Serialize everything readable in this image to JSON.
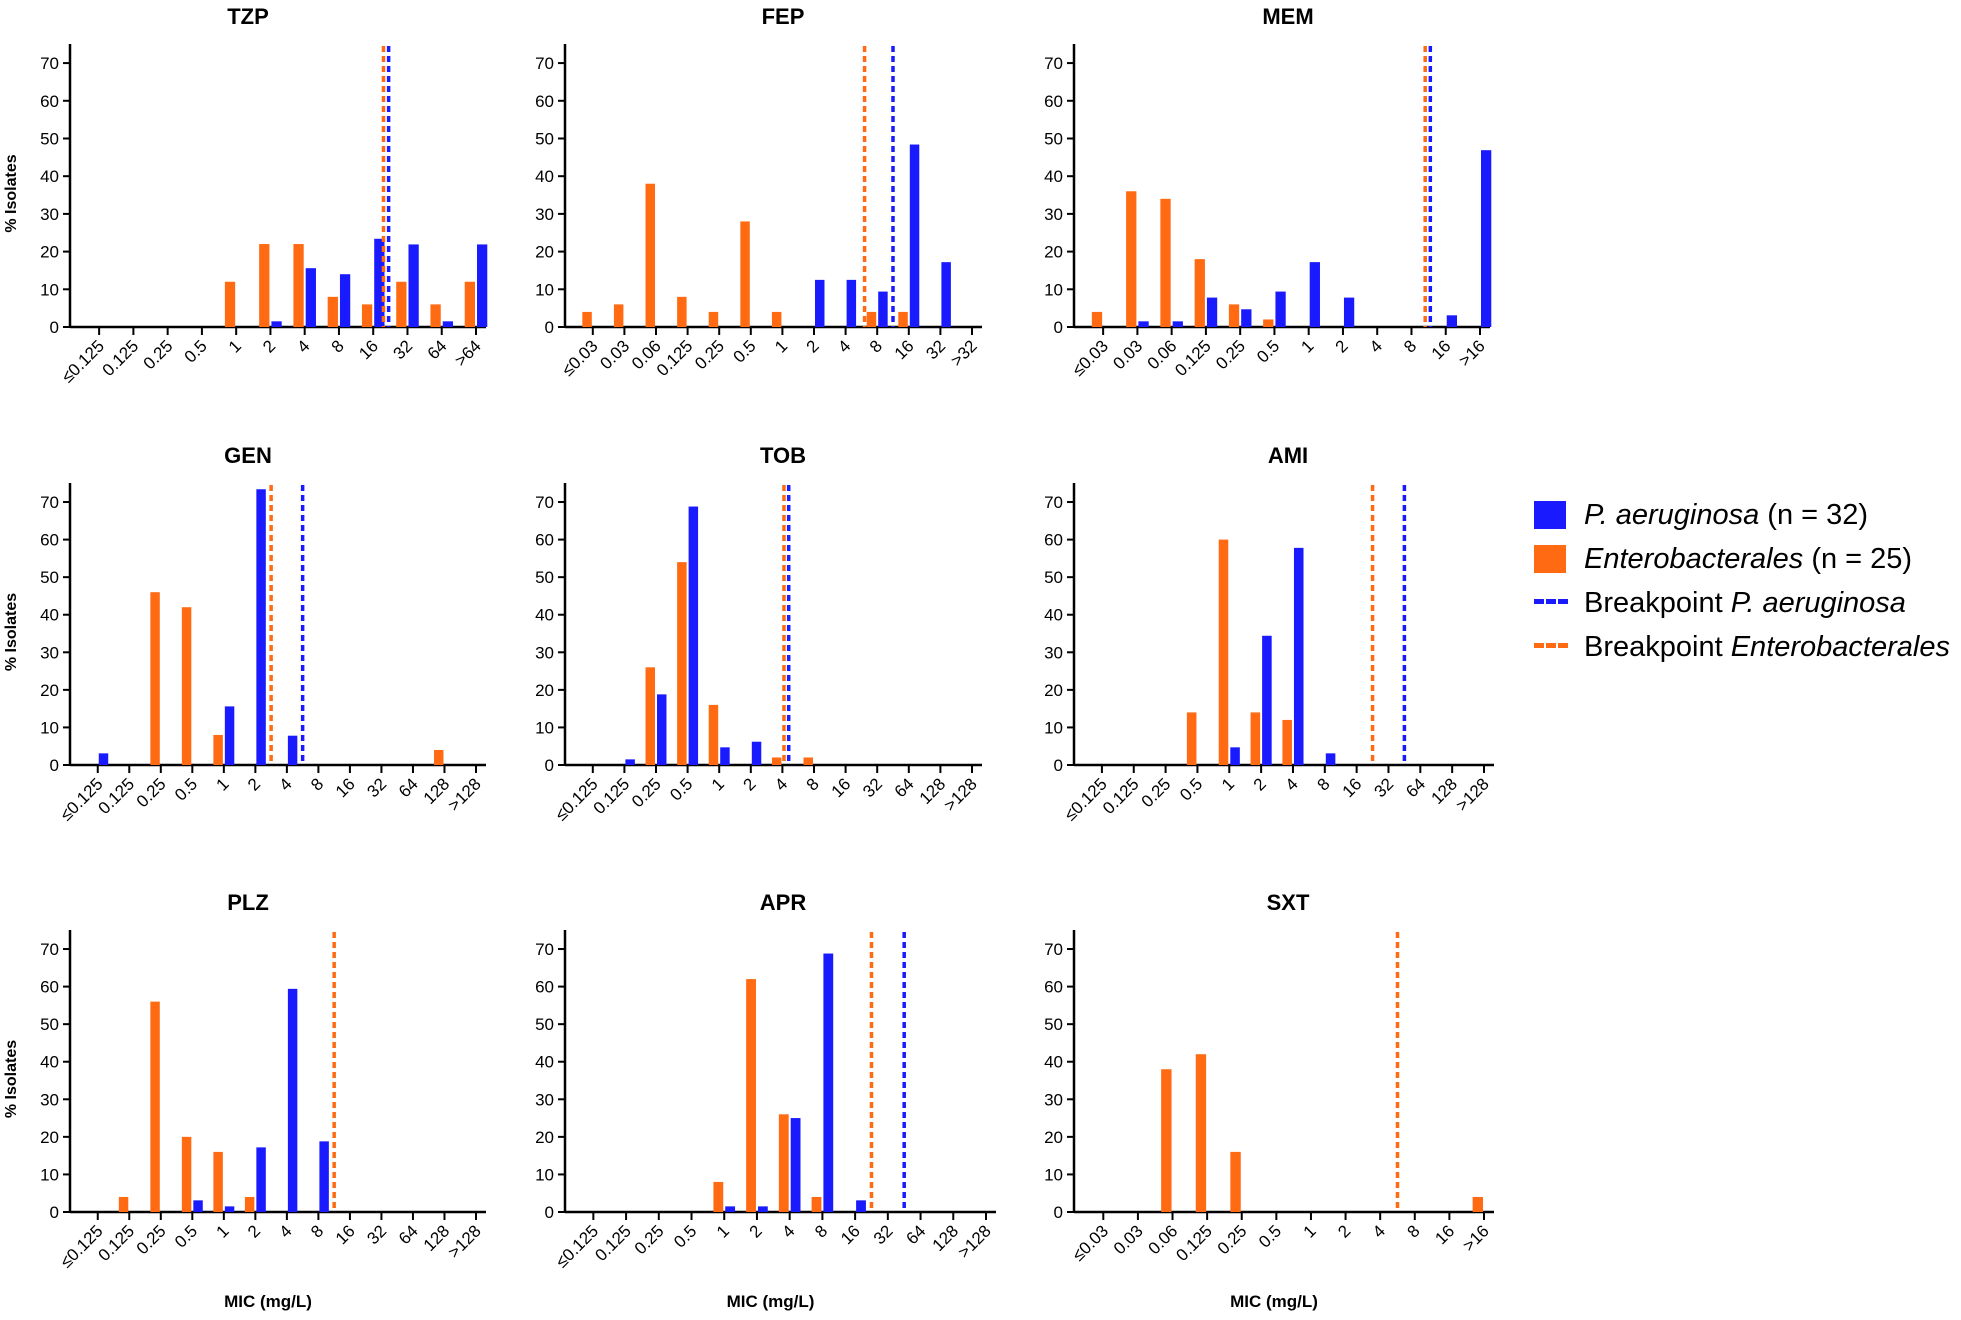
{
  "colors": {
    "pa": "#1a1aff",
    "en": "#ff6a13",
    "axis": "#000000"
  },
  "legend": {
    "pa_bar": {
      "species": "P. aeruginosa",
      "suffix": "(n = 32)"
    },
    "en_bar": {
      "species": "Enterobacterales",
      "suffix": "(n = 25)"
    },
    "pa_bp": {
      "prefix": "Breakpoint",
      "species": "P. aeruginosa"
    },
    "en_bp": {
      "prefix": "Breakpoint",
      "species": "Enterobacterales"
    }
  },
  "chart_data": [
    {
      "type": "bar",
      "title": "TZP",
      "ylabel": "% Isolates",
      "xlabel": "",
      "ylim": [
        0,
        74
      ],
      "yticks": [
        0,
        10,
        20,
        30,
        40,
        50,
        60,
        70
      ],
      "categories": [
        "≤0.125",
        "0.125",
        "0.25",
        "0.5",
        "1",
        "2",
        "4",
        "8",
        "16",
        "32",
        "64",
        ">64"
      ],
      "series": [
        {
          "name": "P. aeruginosa",
          "values": [
            0,
            0,
            0,
            0,
            0,
            1.5,
            15.6,
            14,
            23.4,
            21.9,
            1.5,
            21.9
          ]
        },
        {
          "name": "Enterobacterales",
          "values": [
            0,
            0,
            0,
            0,
            12,
            22,
            22,
            8,
            6,
            12,
            6,
            12
          ]
        }
      ],
      "breakpoints": {
        "P. aeruginosa": 8.45,
        "Enterobacterales": 8.3
      }
    },
    {
      "type": "bar",
      "title": "FEP",
      "ylabel": "",
      "xlabel": "",
      "ylim": [
        0,
        74
      ],
      "yticks": [
        0,
        10,
        20,
        30,
        40,
        50,
        60,
        70
      ],
      "categories": [
        "≤0.03",
        "0.03",
        "0.06",
        "0.125",
        "0.25",
        "0.5",
        "1",
        "2",
        "4",
        "8",
        "16",
        "32",
        ">32"
      ],
      "series": [
        {
          "name": "P. aeruginosa",
          "values": [
            0,
            0,
            0,
            0,
            0,
            0,
            0,
            12.5,
            12.5,
            9.4,
            48.4,
            17.2,
            0
          ]
        },
        {
          "name": "Enterobacterales",
          "values": [
            4,
            6,
            38,
            8,
            4,
            28,
            4,
            0,
            0,
            4,
            4,
            0,
            0
          ]
        }
      ],
      "breakpoints": {
        "P. aeruginosa": 9.5,
        "Enterobacterales": 8.6
      }
    },
    {
      "type": "bar",
      "title": "MEM",
      "ylabel": "",
      "xlabel": "",
      "ylim": [
        0,
        74
      ],
      "yticks": [
        0,
        10,
        20,
        30,
        40,
        50,
        60,
        70
      ],
      "categories": [
        "≤0.03",
        "0.03",
        "0.06",
        "0.125",
        "0.25",
        "0.5",
        "1",
        "2",
        "4",
        "8",
        "16",
        ">16"
      ],
      "series": [
        {
          "name": "P. aeruginosa",
          "values": [
            0,
            1.5,
            1.5,
            7.8,
            4.7,
            9.4,
            17.2,
            7.8,
            0,
            0,
            3.1,
            46.9
          ]
        },
        {
          "name": "Enterobacterales",
          "values": [
            4,
            36,
            34,
            18,
            6,
            2,
            0,
            0,
            0,
            0,
            0,
            0
          ]
        }
      ],
      "breakpoints": {
        "P. aeruginosa": 9.55,
        "Enterobacterales": 9.4
      }
    },
    {
      "type": "bar",
      "title": "GEN",
      "ylabel": "% Isolates",
      "xlabel": "",
      "ylim": [
        0,
        74
      ],
      "yticks": [
        0,
        10,
        20,
        30,
        40,
        50,
        60,
        70
      ],
      "categories": [
        "≤0.125",
        "0.125",
        "0.25",
        "0.5",
        "1",
        "2",
        "4",
        "8",
        "16",
        "32",
        "64",
        "128",
        ">128"
      ],
      "series": [
        {
          "name": "P. aeruginosa",
          "values": [
            3.1,
            0,
            0,
            0,
            15.6,
            73.4,
            7.8,
            0,
            0,
            0,
            0,
            0,
            0
          ]
        },
        {
          "name": "Enterobacterales",
          "values": [
            0,
            0,
            46,
            42,
            8,
            0,
            0,
            0,
            0,
            0,
            0,
            4,
            0
          ]
        }
      ],
      "breakpoints": {
        "P. aeruginosa": 6.5,
        "Enterobacterales": 5.5
      }
    },
    {
      "type": "bar",
      "title": "TOB",
      "ylabel": "",
      "xlabel": "",
      "ylim": [
        0,
        74
      ],
      "yticks": [
        0,
        10,
        20,
        30,
        40,
        50,
        60,
        70
      ],
      "categories": [
        "≤0.125",
        "0.125",
        "0.25",
        "0.5",
        "1",
        "2",
        "4",
        "8",
        "16",
        "32",
        "64",
        "128",
        ">128"
      ],
      "series": [
        {
          "name": "P. aeruginosa",
          "values": [
            0,
            1.5,
            18.8,
            68.8,
            4.7,
            6.2,
            0,
            0,
            0,
            0,
            0,
            0,
            0
          ]
        },
        {
          "name": "Enterobacterales",
          "values": [
            0,
            0,
            26,
            54,
            16,
            0,
            2,
            2,
            0,
            0,
            0,
            0,
            0
          ]
        }
      ],
      "breakpoints": {
        "P. aeruginosa": 6.2,
        "Enterobacterales": 6.05
      }
    },
    {
      "type": "bar",
      "title": "AMI",
      "ylabel": "",
      "xlabel": "",
      "ylim": [
        0,
        74
      ],
      "yticks": [
        0,
        10,
        20,
        30,
        40,
        50,
        60,
        70
      ],
      "categories": [
        "≤0.125",
        "0.125",
        "0.25",
        "0.5",
        "1",
        "2",
        "4",
        "8",
        "16",
        "32",
        "64",
        "128",
        ">128"
      ],
      "series": [
        {
          "name": "P. aeruginosa",
          "values": [
            0,
            0,
            0,
            0,
            4.7,
            34.4,
            57.8,
            3.1,
            0,
            0,
            0,
            0,
            0
          ]
        },
        {
          "name": "Enterobacterales",
          "values": [
            0,
            0,
            0,
            14,
            60,
            14,
            12,
            0,
            0,
            0,
            0,
            0,
            0
          ]
        }
      ],
      "breakpoints": {
        "P. aeruginosa": 9.5,
        "Enterobacterales": 8.5
      }
    },
    {
      "type": "bar",
      "title": "PLZ",
      "ylabel": "% Isolates",
      "xlabel": "MIC (mg/L)",
      "ylim": [
        0,
        74
      ],
      "yticks": [
        0,
        10,
        20,
        30,
        40,
        50,
        60,
        70
      ],
      "categories": [
        "≤0.125",
        "0.125",
        "0.25",
        "0.5",
        "1",
        "2",
        "4",
        "8",
        "16",
        "32",
        "64",
        "128",
        ">128"
      ],
      "series": [
        {
          "name": "P. aeruginosa",
          "values": [
            0,
            0,
            0,
            3.1,
            1.5,
            17.2,
            59.4,
            18.8,
            0,
            0,
            0,
            0,
            0
          ]
        },
        {
          "name": "Enterobacterales",
          "values": [
            0,
            4,
            56,
            20,
            16,
            4,
            0,
            0,
            0,
            0,
            0,
            0,
            0
          ]
        }
      ],
      "breakpoints": {
        "P. aeruginosa": null,
        "Enterobacterales": 7.5
      }
    },
    {
      "type": "bar",
      "title": "APR",
      "ylabel": "",
      "xlabel": "MIC (mg/L)",
      "ylim": [
        0,
        74
      ],
      "yticks": [
        0,
        10,
        20,
        30,
        40,
        50,
        60,
        70
      ],
      "categories": [
        "≤0.125",
        "0.125",
        "0.25",
        "0.5",
        "1",
        "2",
        "4",
        "8",
        "16",
        "32",
        "64",
        "128",
        ">128"
      ],
      "series": [
        {
          "name": "P. aeruginosa",
          "values": [
            0,
            0,
            0,
            0,
            1.5,
            1.5,
            25,
            68.8,
            3.1,
            0,
            0,
            0,
            0
          ]
        },
        {
          "name": "Enterobacterales",
          "values": [
            0,
            0,
            0,
            0,
            8,
            62,
            26,
            4,
            0,
            0,
            0,
            0,
            0
          ]
        }
      ],
      "breakpoints": {
        "P. aeruginosa": 9.5,
        "Enterobacterales": 8.5
      }
    },
    {
      "type": "bar",
      "title": "SXT",
      "ylabel": "",
      "xlabel": "MIC (mg/L)",
      "ylim": [
        0,
        74
      ],
      "yticks": [
        0,
        10,
        20,
        30,
        40,
        50,
        60,
        70
      ],
      "categories": [
        "≤0.03",
        "0.03",
        "0.06",
        "0.125",
        "0.25",
        "0.5",
        "1",
        "2",
        "4",
        "8",
        "16",
        ">16"
      ],
      "series": [
        {
          "name": "P. aeruginosa",
          "values": [
            0,
            0,
            0,
            0,
            0,
            0,
            0,
            0,
            0,
            0,
            0,
            0
          ]
        },
        {
          "name": "Enterobacterales",
          "values": [
            0,
            0,
            38,
            42,
            16,
            0,
            0,
            0,
            0,
            0,
            0,
            4
          ]
        }
      ],
      "breakpoints": {
        "P. aeruginosa": null,
        "Enterobacterales": 8.5
      }
    }
  ]
}
